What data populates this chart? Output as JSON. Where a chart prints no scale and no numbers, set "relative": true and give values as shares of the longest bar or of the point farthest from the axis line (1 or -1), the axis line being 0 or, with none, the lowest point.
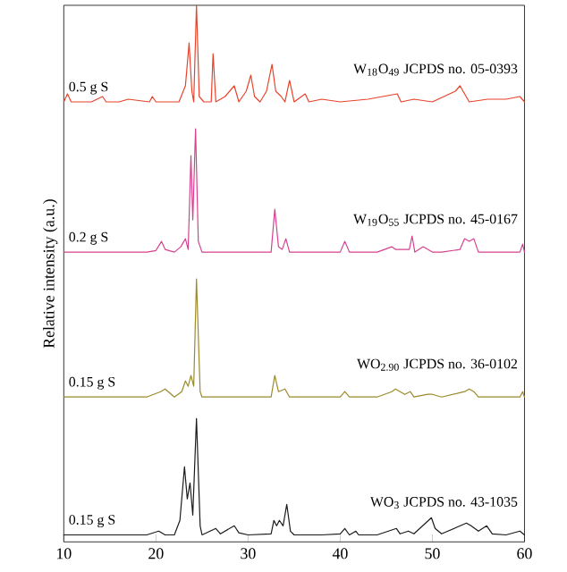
{
  "chart_data": {
    "type": "line",
    "relative": true,
    "ylabel": "Relative intensity (a.u.)",
    "xlim": [
      10,
      60
    ],
    "xticks": [
      10,
      20,
      30,
      40,
      50,
      60
    ],
    "grid": false,
    "marker": "none",
    "line_style": "solid",
    "series": [
      {
        "name": "0.5 g S",
        "color": "#e8432a",
        "x": [
          10,
          10.4,
          10.8,
          13,
          14.2,
          14.6,
          16,
          17,
          19.3,
          19.6,
          20,
          22.5,
          23.2,
          23.6,
          23.9,
          24.1,
          24.4,
          24.7,
          25.2,
          26,
          26.2,
          26.5,
          27.5,
          28.5,
          29,
          29.8,
          30.3,
          30.7,
          31.3,
          32,
          32.6,
          33,
          33.6,
          34,
          34.5,
          35,
          36.2,
          36.6,
          38,
          40,
          43,
          46.2,
          46.6,
          48,
          50,
          52.5,
          53,
          53.5,
          54,
          56,
          58,
          59.5,
          60
        ],
        "values": [
          0.82,
          0.835,
          0.82,
          0.82,
          0.83,
          0.82,
          0.82,
          0.825,
          0.82,
          0.83,
          0.82,
          0.82,
          0.85,
          0.93,
          0.84,
          0.82,
          1.0,
          0.83,
          0.82,
          0.82,
          0.91,
          0.82,
          0.83,
          0.85,
          0.82,
          0.84,
          0.87,
          0.83,
          0.82,
          0.84,
          0.89,
          0.84,
          0.83,
          0.82,
          0.86,
          0.82,
          0.835,
          0.82,
          0.825,
          0.82,
          0.825,
          0.835,
          0.82,
          0.825,
          0.82,
          0.84,
          0.85,
          0.835,
          0.82,
          0.825,
          0.825,
          0.83,
          0.82
        ]
      },
      {
        "name": "0.2 g S",
        "color": "#d6418f",
        "x": [
          10,
          15,
          19,
          20,
          20.6,
          21,
          22,
          22.7,
          23.2,
          23.5,
          23.8,
          24.0,
          24.3,
          24.6,
          25,
          27,
          30,
          32.5,
          32.9,
          33.3,
          33.7,
          34.1,
          34.5,
          36,
          40,
          40.5,
          41,
          44,
          45.6,
          46,
          47.5,
          47.8,
          48.1,
          49,
          50,
          51,
          53,
          53.5,
          54,
          54.5,
          55,
          58,
          59.5,
          59.8,
          60
        ],
        "values": [
          0.54,
          0.54,
          0.54,
          0.543,
          0.56,
          0.545,
          0.54,
          0.55,
          0.565,
          0.545,
          0.72,
          0.6,
          0.77,
          0.56,
          0.54,
          0.54,
          0.54,
          0.54,
          0.62,
          0.55,
          0.545,
          0.565,
          0.54,
          0.54,
          0.54,
          0.56,
          0.54,
          0.54,
          0.55,
          0.545,
          0.545,
          0.57,
          0.54,
          0.55,
          0.54,
          0.54,
          0.545,
          0.565,
          0.56,
          0.565,
          0.54,
          0.54,
          0.54,
          0.555,
          0.54
        ]
      },
      {
        "name": "0.15 g S",
        "color": "#9a8a2a",
        "x": [
          10,
          15,
          19,
          20.5,
          21,
          22,
          22.8,
          23.2,
          23.5,
          23.8,
          24.1,
          24.4,
          24.8,
          25,
          27,
          30,
          32.5,
          32.9,
          33.3,
          34,
          34.5,
          36,
          40,
          40.5,
          41,
          44,
          45.6,
          46,
          47,
          47.6,
          48,
          49.5,
          50,
          51,
          53.5,
          54,
          54.5,
          55,
          58,
          59.5,
          59.8,
          60
        ],
        "values": [
          0.27,
          0.27,
          0.27,
          0.28,
          0.285,
          0.27,
          0.28,
          0.3,
          0.29,
          0.31,
          0.29,
          0.49,
          0.28,
          0.27,
          0.27,
          0.27,
          0.27,
          0.31,
          0.28,
          0.285,
          0.27,
          0.27,
          0.27,
          0.28,
          0.27,
          0.27,
          0.28,
          0.285,
          0.275,
          0.28,
          0.27,
          0.275,
          0.275,
          0.27,
          0.28,
          0.285,
          0.28,
          0.27,
          0.27,
          0.27,
          0.28,
          0.27
        ]
      },
      {
        "name": "0.15 g S",
        "color": "#1a1a1a",
        "x": [
          10,
          15,
          19,
          20.3,
          21,
          22,
          22.6,
          23.1,
          23.4,
          23.7,
          24.0,
          24.4,
          24.8,
          25,
          26.5,
          27,
          28.5,
          29,
          30,
          32.5,
          32.8,
          33.1,
          33.4,
          33.8,
          34.2,
          34.6,
          35,
          38,
          40,
          40.5,
          41,
          41.7,
          42,
          44,
          46.1,
          46.5,
          47.4,
          48,
          49.9,
          50.3,
          51,
          53.7,
          54.2,
          55,
          55.9,
          56.5,
          58,
          59.5,
          60
        ],
        "values": [
          0.013,
          0.013,
          0.013,
          0.02,
          0.013,
          0.013,
          0.04,
          0.14,
          0.08,
          0.11,
          0.05,
          0.23,
          0.03,
          0.013,
          0.025,
          0.015,
          0.03,
          0.017,
          0.013,
          0.015,
          0.04,
          0.03,
          0.04,
          0.03,
          0.07,
          0.02,
          0.013,
          0.013,
          0.015,
          0.025,
          0.013,
          0.02,
          0.013,
          0.013,
          0.025,
          0.015,
          0.02,
          0.015,
          0.045,
          0.025,
          0.015,
          0.035,
          0.03,
          0.02,
          0.03,
          0.015,
          0.013,
          0.02,
          0.013
        ]
      }
    ],
    "annotations": [
      "W$_{18}$O$_{49}$ JCPDS no. 05-0393",
      "W$_{19}$O$_{55}$ JCPDS no. 45-0167",
      "WO$_{2.90}$ JCPDS no. 36-0102",
      "WO$_{3}$ JCPDS no. 43-1035"
    ]
  }
}
